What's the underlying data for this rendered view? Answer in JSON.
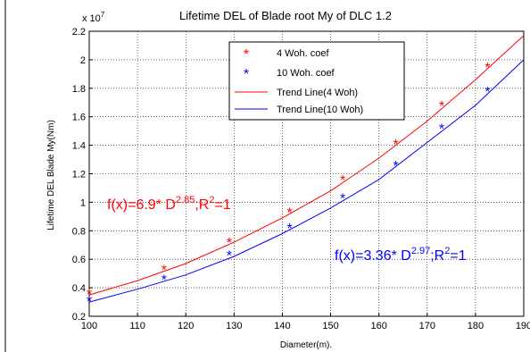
{
  "chart_data": {
    "type": "line",
    "title": "Lifetime DEL of Blade root My of DLC 1.2",
    "xlabel": "Diameter(m).",
    "ylabel": "Lifetime DEL Blade My(Nm)",
    "y_exponent_label": "x 10",
    "y_exponent_power": "7",
    "xlim": [
      100,
      190
    ],
    "ylim": [
      0.2,
      2.2
    ],
    "x_ticks": [
      "100",
      "110",
      "120",
      "130",
      "140",
      "150",
      "160",
      "170",
      "180",
      "190"
    ],
    "y_ticks": [
      "0.2",
      "0.4",
      "0.6",
      "0.8",
      "1",
      "1.2",
      "1.4",
      "1.6",
      "1.8",
      "2",
      "2.2"
    ],
    "grid": true,
    "legend_position": "top-right",
    "series": [
      {
        "name": "4 Woh. coef",
        "kind": "scatter",
        "marker": "*",
        "color": "#ff0000",
        "x": [
          100,
          115.5,
          129,
          141.5,
          152.5,
          163.5,
          173,
          182.5
        ],
        "y": [
          0.36,
          0.53,
          0.72,
          0.93,
          1.16,
          1.41,
          1.68,
          1.95
        ]
      },
      {
        "name": "10 Woh. coef",
        "kind": "scatter",
        "marker": "*",
        "color": "#0000ff",
        "x": [
          100,
          115.5,
          129,
          141.5,
          152.5,
          163.5,
          173,
          182.5
        ],
        "y": [
          0.31,
          0.46,
          0.63,
          0.82,
          1.03,
          1.26,
          1.52,
          1.78
        ]
      },
      {
        "name": "Trend Line(4 Woh)",
        "kind": "line",
        "color": "#ff0000",
        "x": [
          100,
          110,
          120,
          130,
          140,
          150,
          160,
          170,
          180,
          190
        ],
        "y": [
          0.35,
          0.45,
          0.57,
          0.72,
          0.89,
          1.08,
          1.31,
          1.57,
          1.86,
          2.17
        ]
      },
      {
        "name": "Trend Line(10 Woh)",
        "kind": "line",
        "color": "#0000ff",
        "x": [
          100,
          110,
          120,
          130,
          140,
          150,
          160,
          170,
          180,
          190
        ],
        "y": [
          0.3,
          0.39,
          0.49,
          0.62,
          0.78,
          0.96,
          1.16,
          1.42,
          1.68,
          2.0
        ]
      }
    ],
    "annotations": [
      {
        "color": "#ff0000",
        "prefix": "f(x)=6.9* D",
        "exp1": "2.85",
        "mid": ";R",
        "exp2": "2",
        "suffix": "=1"
      },
      {
        "color": "#0000ff",
        "prefix": "f(x)=3.36* D",
        "exp1": "2.97",
        "mid": ";R",
        "exp2": "2",
        "suffix": "=1"
      }
    ]
  }
}
